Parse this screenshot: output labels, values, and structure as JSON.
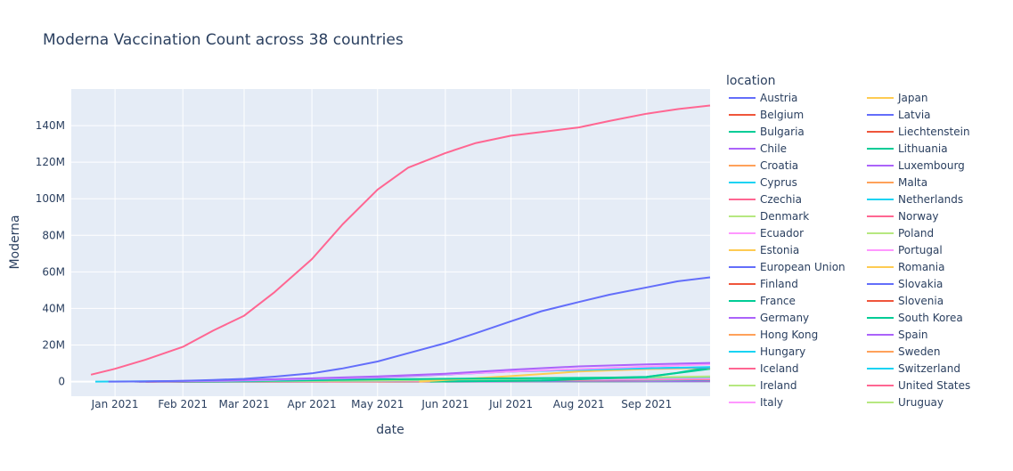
{
  "chart_data": {
    "type": "line",
    "title": "Moderna Vaccination Count across 38 countries",
    "xlabel": "date",
    "ylabel": "Moderna",
    "legend_title": "location",
    "legend_position": "right",
    "grid": true,
    "background": "#E5ECF6",
    "x_range": [
      "2020-12-12",
      "2021-09-30"
    ],
    "y_range": [
      -8000000,
      160000000
    ],
    "x_ticks": [
      {
        "date": "2021-01-01",
        "label": "Jan 2021"
      },
      {
        "date": "2021-02-01",
        "label": "Feb 2021"
      },
      {
        "date": "2021-03-01",
        "label": "Mar 2021"
      },
      {
        "date": "2021-04-01",
        "label": "Apr 2021"
      },
      {
        "date": "2021-05-01",
        "label": "May 2021"
      },
      {
        "date": "2021-06-01",
        "label": "Jun 2021"
      },
      {
        "date": "2021-07-01",
        "label": "Jul 2021"
      },
      {
        "date": "2021-08-01",
        "label": "Aug 2021"
      },
      {
        "date": "2021-09-01",
        "label": "Sep 2021"
      }
    ],
    "y_ticks": [
      {
        "value": 0,
        "label": "0"
      },
      {
        "value": 20000000,
        "label": "20M"
      },
      {
        "value": 40000000,
        "label": "40M"
      },
      {
        "value": 60000000,
        "label": "60M"
      },
      {
        "value": 80000000,
        "label": "80M"
      },
      {
        "value": 100000000,
        "label": "100M"
      },
      {
        "value": 120000000,
        "label": "120M"
      },
      {
        "value": 140000000,
        "label": "140M"
      }
    ],
    "series": [
      {
        "name": "Austria",
        "color": "#636EFA",
        "points": [
          [
            "2021-01-12",
            0
          ],
          [
            "2021-05-01",
            300000
          ],
          [
            "2021-09-30",
            1000000
          ]
        ]
      },
      {
        "name": "Belgium",
        "color": "#EF553B",
        "points": [
          [
            "2021-01-11",
            0
          ],
          [
            "2021-05-01",
            400000
          ],
          [
            "2021-09-30",
            1700000
          ]
        ]
      },
      {
        "name": "Bulgaria",
        "color": "#00CC96",
        "points": [
          [
            "2021-01-15",
            0
          ],
          [
            "2021-05-01",
            50000
          ],
          [
            "2021-09-30",
            300000
          ]
        ]
      },
      {
        "name": "Chile",
        "color": "#AB63FA",
        "points": [
          [
            "2021-06-01",
            0
          ],
          [
            "2021-09-30",
            500000
          ]
        ]
      },
      {
        "name": "Croatia",
        "color": "#FFA15A",
        "points": [
          [
            "2021-01-15",
            0
          ],
          [
            "2021-05-01",
            100000
          ],
          [
            "2021-09-30",
            400000
          ]
        ]
      },
      {
        "name": "Cyprus",
        "color": "#19D3F3",
        "points": [
          [
            "2021-01-15",
            0
          ],
          [
            "2021-05-01",
            30000
          ],
          [
            "2021-09-30",
            150000
          ]
        ]
      },
      {
        "name": "Czechia",
        "color": "#FF6692",
        "points": [
          [
            "2021-01-15",
            0
          ],
          [
            "2021-05-01",
            300000
          ],
          [
            "2021-09-30",
            1400000
          ]
        ]
      },
      {
        "name": "Denmark",
        "color": "#B6E880",
        "points": [
          [
            "2021-01-15",
            0
          ],
          [
            "2021-05-01",
            250000
          ],
          [
            "2021-09-30",
            1300000
          ]
        ]
      },
      {
        "name": "Ecuador",
        "color": "#FF97FF",
        "points": [
          [
            "2021-05-01",
            0
          ],
          [
            "2021-09-30",
            100000
          ]
        ]
      },
      {
        "name": "Estonia",
        "color": "#FECB52",
        "points": [
          [
            "2021-01-15",
            0
          ],
          [
            "2021-05-01",
            50000
          ],
          [
            "2021-09-30",
            200000
          ]
        ]
      },
      {
        "name": "European Union",
        "color": "#636EFA",
        "points": [
          [
            "2020-12-29",
            0
          ],
          [
            "2021-01-15",
            100000
          ],
          [
            "2021-02-01",
            400000
          ],
          [
            "2021-02-15",
            900000
          ],
          [
            "2021-03-01",
            1500000
          ],
          [
            "2021-03-15",
            2700000
          ],
          [
            "2021-04-01",
            4500000
          ],
          [
            "2021-04-15",
            7200000
          ],
          [
            "2021-05-01",
            11000000
          ],
          [
            "2021-05-15",
            15500000
          ],
          [
            "2021-06-01",
            21000000
          ],
          [
            "2021-06-15",
            26500000
          ],
          [
            "2021-07-01",
            33000000
          ],
          [
            "2021-07-15",
            38500000
          ],
          [
            "2021-08-01",
            43500000
          ],
          [
            "2021-08-15",
            47500000
          ],
          [
            "2021-09-01",
            51500000
          ],
          [
            "2021-09-15",
            54800000
          ],
          [
            "2021-09-30",
            57000000
          ]
        ]
      },
      {
        "name": "Finland",
        "color": "#EF553B",
        "points": [
          [
            "2021-01-15",
            0
          ],
          [
            "2021-05-01",
            200000
          ],
          [
            "2021-09-30",
            900000
          ]
        ]
      },
      {
        "name": "France",
        "color": "#00CC96",
        "points": [
          [
            "2021-01-10",
            0
          ],
          [
            "2021-03-01",
            300000
          ],
          [
            "2021-05-01",
            1200000
          ],
          [
            "2021-07-01",
            1800000
          ],
          [
            "2021-08-15",
            2200000
          ],
          [
            "2021-09-01",
            2600000
          ],
          [
            "2021-09-15",
            4800000
          ],
          [
            "2021-09-30",
            7800000
          ]
        ]
      },
      {
        "name": "Germany",
        "color": "#AB63FA",
        "points": [
          [
            "2021-01-12",
            0
          ],
          [
            "2021-03-01",
            900000
          ],
          [
            "2021-04-01",
            1800000
          ],
          [
            "2021-05-01",
            2800000
          ],
          [
            "2021-06-01",
            4300000
          ],
          [
            "2021-07-01",
            6500000
          ],
          [
            "2021-08-01",
            8300000
          ],
          [
            "2021-09-01",
            9400000
          ],
          [
            "2021-09-30",
            10200000
          ]
        ]
      },
      {
        "name": "Hong Kong",
        "color": "#FFA15A",
        "points": [
          [
            "2021-05-01",
            0
          ],
          [
            "2021-09-30",
            50000
          ]
        ]
      },
      {
        "name": "Hungary",
        "color": "#19D3F3",
        "points": [
          [
            "2021-01-15",
            0
          ],
          [
            "2021-05-01",
            300000
          ],
          [
            "2021-09-30",
            900000
          ]
        ]
      },
      {
        "name": "Iceland",
        "color": "#FF6692",
        "points": [
          [
            "2021-01-20",
            0
          ],
          [
            "2021-09-30",
            50000
          ]
        ]
      },
      {
        "name": "Ireland",
        "color": "#B6E880",
        "points": [
          [
            "2021-01-20",
            0
          ],
          [
            "2021-05-01",
            150000
          ],
          [
            "2021-09-30",
            800000
          ]
        ]
      },
      {
        "name": "Italy",
        "color": "#FF97FF",
        "points": [
          [
            "2021-01-10",
            0
          ],
          [
            "2021-03-01",
            600000
          ],
          [
            "2021-05-01",
            2500000
          ],
          [
            "2021-07-01",
            5500000
          ],
          [
            "2021-09-30",
            9500000
          ]
        ]
      },
      {
        "name": "Japan",
        "color": "#FECB52",
        "points": [
          [
            "2021-05-20",
            0
          ],
          [
            "2021-07-01",
            3000000
          ],
          [
            "2021-08-01",
            5500000
          ],
          [
            "2021-09-01",
            6800000
          ],
          [
            "2021-09-30",
            7500000
          ]
        ]
      },
      {
        "name": "Latvia",
        "color": "#636EFA",
        "points": [
          [
            "2021-01-15",
            0
          ],
          [
            "2021-05-01",
            40000
          ],
          [
            "2021-09-30",
            200000
          ]
        ]
      },
      {
        "name": "Liechtenstein",
        "color": "#EF553B",
        "points": [
          [
            "2021-01-20",
            0
          ],
          [
            "2021-09-30",
            40000
          ]
        ]
      },
      {
        "name": "Lithuania",
        "color": "#00CC96",
        "points": [
          [
            "2021-01-15",
            0
          ],
          [
            "2021-05-01",
            60000
          ],
          [
            "2021-09-30",
            300000
          ]
        ]
      },
      {
        "name": "Luxembourg",
        "color": "#AB63FA",
        "points": [
          [
            "2021-01-15",
            0
          ],
          [
            "2021-09-30",
            60000
          ]
        ]
      },
      {
        "name": "Malta",
        "color": "#FFA15A",
        "points": [
          [
            "2021-01-15",
            0
          ],
          [
            "2021-09-30",
            80000
          ]
        ]
      },
      {
        "name": "Netherlands",
        "color": "#19D3F3",
        "points": [
          [
            "2021-01-20",
            0
          ],
          [
            "2021-05-01",
            500000
          ],
          [
            "2021-09-30",
            2500000
          ]
        ]
      },
      {
        "name": "Norway",
        "color": "#FF6692",
        "points": [
          [
            "2021-01-20",
            0
          ],
          [
            "2021-05-01",
            150000
          ],
          [
            "2021-09-30",
            1500000
          ]
        ]
      },
      {
        "name": "Poland",
        "color": "#B6E880",
        "points": [
          [
            "2021-01-20",
            0
          ],
          [
            "2021-05-01",
            600000
          ],
          [
            "2021-09-30",
            2800000
          ]
        ]
      },
      {
        "name": "Portugal",
        "color": "#FF97FF",
        "points": [
          [
            "2021-01-15",
            0
          ],
          [
            "2021-05-01",
            300000
          ],
          [
            "2021-09-30",
            1700000
          ]
        ]
      },
      {
        "name": "Romania",
        "color": "#FECB52",
        "points": [
          [
            "2021-01-15",
            0
          ],
          [
            "2021-05-01",
            300000
          ],
          [
            "2021-09-30",
            1300000
          ]
        ]
      },
      {
        "name": "Slovakia",
        "color": "#636EFA",
        "points": [
          [
            "2021-01-15",
            0
          ],
          [
            "2021-05-01",
            100000
          ],
          [
            "2021-09-30",
            400000
          ]
        ]
      },
      {
        "name": "Slovenia",
        "color": "#EF553B",
        "points": [
          [
            "2021-01-15",
            0
          ],
          [
            "2021-05-01",
            80000
          ],
          [
            "2021-09-30",
            300000
          ]
        ]
      },
      {
        "name": "South Korea",
        "color": "#00CC96",
        "points": [
          [
            "2021-05-25",
            0
          ],
          [
            "2021-07-15",
            500000
          ],
          [
            "2021-09-01",
            2500000
          ],
          [
            "2021-09-30",
            7000000
          ]
        ]
      },
      {
        "name": "Spain",
        "color": "#AB63FA",
        "points": [
          [
            "2021-01-15",
            0
          ],
          [
            "2021-03-01",
            500000
          ],
          [
            "2021-05-01",
            2200000
          ],
          [
            "2021-07-01",
            5500000
          ],
          [
            "2021-09-01",
            7300000
          ],
          [
            "2021-09-30",
            7800000
          ]
        ]
      },
      {
        "name": "Sweden",
        "color": "#FFA15A",
        "points": [
          [
            "2021-01-15",
            0
          ],
          [
            "2021-05-01",
            400000
          ],
          [
            "2021-09-30",
            2400000
          ]
        ]
      },
      {
        "name": "Switzerland",
        "color": "#19D3F3",
        "points": [
          [
            "2020-12-23",
            0
          ],
          [
            "2021-03-01",
            500000
          ],
          [
            "2021-05-01",
            2400000
          ],
          [
            "2021-07-01",
            5500000
          ],
          [
            "2021-09-01",
            7300000
          ],
          [
            "2021-09-30",
            7900000
          ]
        ]
      },
      {
        "name": "United States",
        "color": "#FF6692",
        "points": [
          [
            "2020-12-21",
            3800000
          ],
          [
            "2021-01-01",
            7000000
          ],
          [
            "2021-01-15",
            12000000
          ],
          [
            "2021-02-01",
            19000000
          ],
          [
            "2021-02-15",
            28000000
          ],
          [
            "2021-03-01",
            36000000
          ],
          [
            "2021-03-15",
            49000000
          ],
          [
            "2021-04-01",
            67000000
          ],
          [
            "2021-04-15",
            86000000
          ],
          [
            "2021-05-01",
            105000000
          ],
          [
            "2021-05-15",
            117000000
          ],
          [
            "2021-06-01",
            125000000
          ],
          [
            "2021-06-15",
            130500000
          ],
          [
            "2021-07-01",
            134500000
          ],
          [
            "2021-07-15",
            136500000
          ],
          [
            "2021-08-01",
            139000000
          ],
          [
            "2021-08-15",
            142500000
          ],
          [
            "2021-09-01",
            146500000
          ],
          [
            "2021-09-15",
            149000000
          ],
          [
            "2021-09-30",
            151000000
          ]
        ]
      },
      {
        "name": "Uruguay",
        "color": "#B6E880",
        "points": [
          [
            "2021-06-01",
            0
          ],
          [
            "2021-09-30",
            100000
          ]
        ]
      }
    ]
  }
}
